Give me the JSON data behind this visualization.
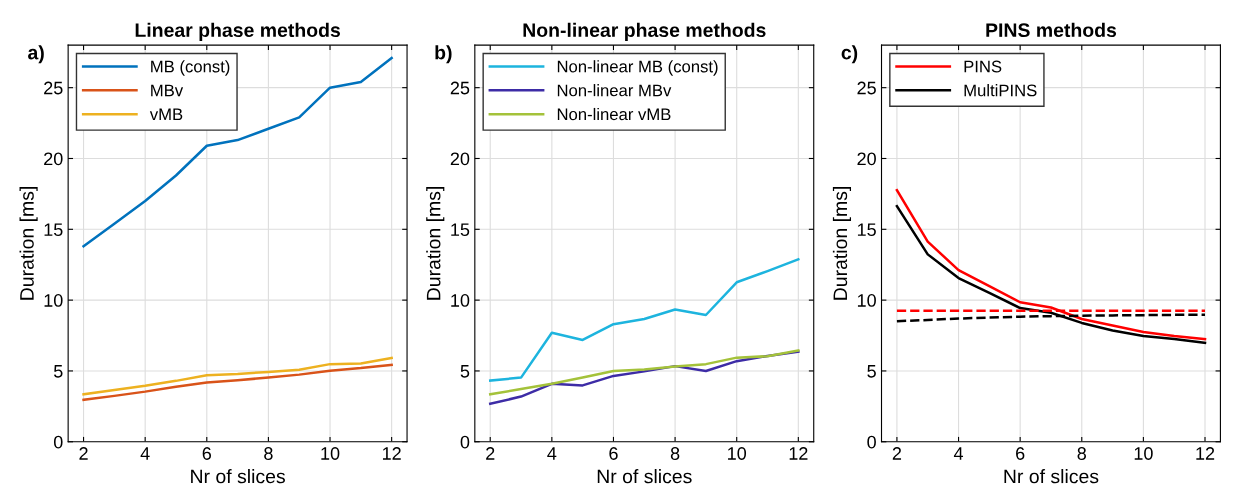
{
  "chart_data": [
    {
      "type": "line",
      "title": "Linear phase methods",
      "xlabel": "Nr of slices",
      "ylabel": "Duration [ms]",
      "annotations": [
        "a)"
      ],
      "x": [
        2,
        3,
        4,
        5,
        6,
        7,
        8,
        9,
        10,
        11,
        12
      ],
      "xlim": [
        1.5,
        12.5
      ],
      "xticks": [
        2,
        4,
        6,
        8,
        10,
        12
      ],
      "ylim": [
        0,
        28
      ],
      "yticks": [
        0,
        5,
        10,
        15,
        20,
        25
      ],
      "grid": true,
      "legend": "top left",
      "series": [
        {
          "name": "MB (const)",
          "color": "#0072bd",
          "values": [
            13.8,
            15.4,
            17.0,
            18.8,
            20.9,
            21.3,
            22.1,
            22.9,
            25.0,
            25.4,
            27.1
          ]
        },
        {
          "name": "MBv",
          "color": "#d95319",
          "values": [
            2.96,
            3.24,
            3.54,
            3.89,
            4.19,
            4.35,
            4.53,
            4.74,
            5.02,
            5.2,
            5.43
          ]
        },
        {
          "name": "vMB",
          "color": "#edb120",
          "values": [
            3.35,
            3.65,
            3.95,
            4.3,
            4.7,
            4.79,
            4.93,
            5.09,
            5.48,
            5.53,
            5.92
          ]
        }
      ]
    },
    {
      "type": "line",
      "title": "Non-linear phase methods",
      "xlabel": "Nr of slices",
      "ylabel": "Duration [ms]",
      "annotations": [
        "b)"
      ],
      "x": [
        2,
        3,
        4,
        5,
        6,
        7,
        8,
        9,
        10,
        11,
        12
      ],
      "xlim": [
        1.5,
        12.5
      ],
      "xticks": [
        2,
        4,
        6,
        8,
        10,
        12
      ],
      "ylim": [
        0,
        28
      ],
      "yticks": [
        0,
        5,
        10,
        15,
        20,
        25
      ],
      "grid": true,
      "legend": "top left",
      "series": [
        {
          "name": "Non-linear MB (const)",
          "color": "#1db4de",
          "values": [
            4.32,
            4.53,
            7.7,
            7.19,
            8.3,
            8.67,
            9.34,
            8.95,
            11.26,
            12.05,
            12.88
          ]
        },
        {
          "name": "Non-linear MBv",
          "color": "#3d2ca6",
          "values": [
            2.68,
            3.19,
            4.09,
            3.98,
            4.65,
            4.97,
            5.34,
            5.0,
            5.69,
            6.06,
            6.36
          ]
        },
        {
          "name": "Non-linear vMB",
          "color": "#a4c23a",
          "values": [
            3.35,
            3.72,
            4.09,
            4.53,
            5.0,
            5.11,
            5.32,
            5.48,
            5.94,
            6.04,
            6.45
          ]
        }
      ]
    },
    {
      "type": "line",
      "title": "PINS methods",
      "xlabel": "Nr of slices",
      "ylabel": "Duration [ms]",
      "annotations": [
        "c)"
      ],
      "x": [
        2,
        3,
        4,
        5,
        6,
        7,
        8,
        9,
        10,
        11,
        12
      ],
      "xlim": [
        1.5,
        12.5
      ],
      "xticks": [
        2,
        4,
        6,
        8,
        10,
        12
      ],
      "ylim": [
        0,
        28
      ],
      "yticks": [
        0,
        5,
        10,
        15,
        20,
        25
      ],
      "grid": true,
      "legend": "top left",
      "series": [
        {
          "name": "PINS",
          "color": "#ff0000",
          "values": [
            17.76,
            14.13,
            12.12,
            10.99,
            9.85,
            9.48,
            8.67,
            8.21,
            7.75,
            7.47,
            7.24
          ]
        },
        {
          "name": "MultiPINS",
          "color": "#000000",
          "values": [
            16.63,
            13.23,
            11.56,
            10.52,
            9.44,
            9.11,
            8.39,
            7.86,
            7.47,
            7.26,
            6.98
          ]
        },
        {
          "color": "#ff0000",
          "line_style": "dashed",
          "values": [
            9.25,
            9.25,
            9.25,
            9.25,
            9.25,
            9.25,
            9.25,
            9.25,
            9.25,
            9.25,
            9.25
          ]
        },
        {
          "color": "#000000",
          "line_style": "dashed",
          "values": [
            8.51,
            8.6,
            8.7,
            8.77,
            8.83,
            8.87,
            8.9,
            8.92,
            8.94,
            8.96,
            8.97
          ]
        }
      ]
    }
  ]
}
